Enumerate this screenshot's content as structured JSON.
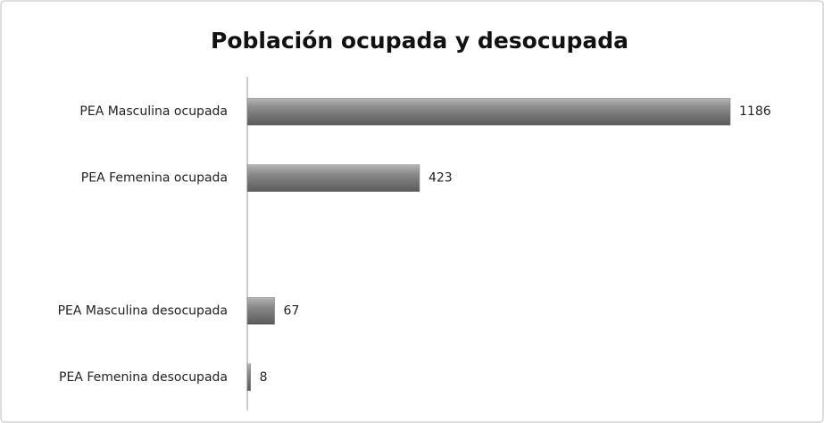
{
  "chart_data": {
    "type": "bar",
    "orientation": "horizontal",
    "title": "Población ocupada y desocupada",
    "categories": [
      "PEA Masculina ocupada",
      "PEA Femenina ocupada",
      null,
      "PEA Masculina desocupada",
      "PEA Femenina desocupada"
    ],
    "values": [
      1186,
      423,
      null,
      67,
      8
    ],
    "color": "#7a7a7a"
  }
}
